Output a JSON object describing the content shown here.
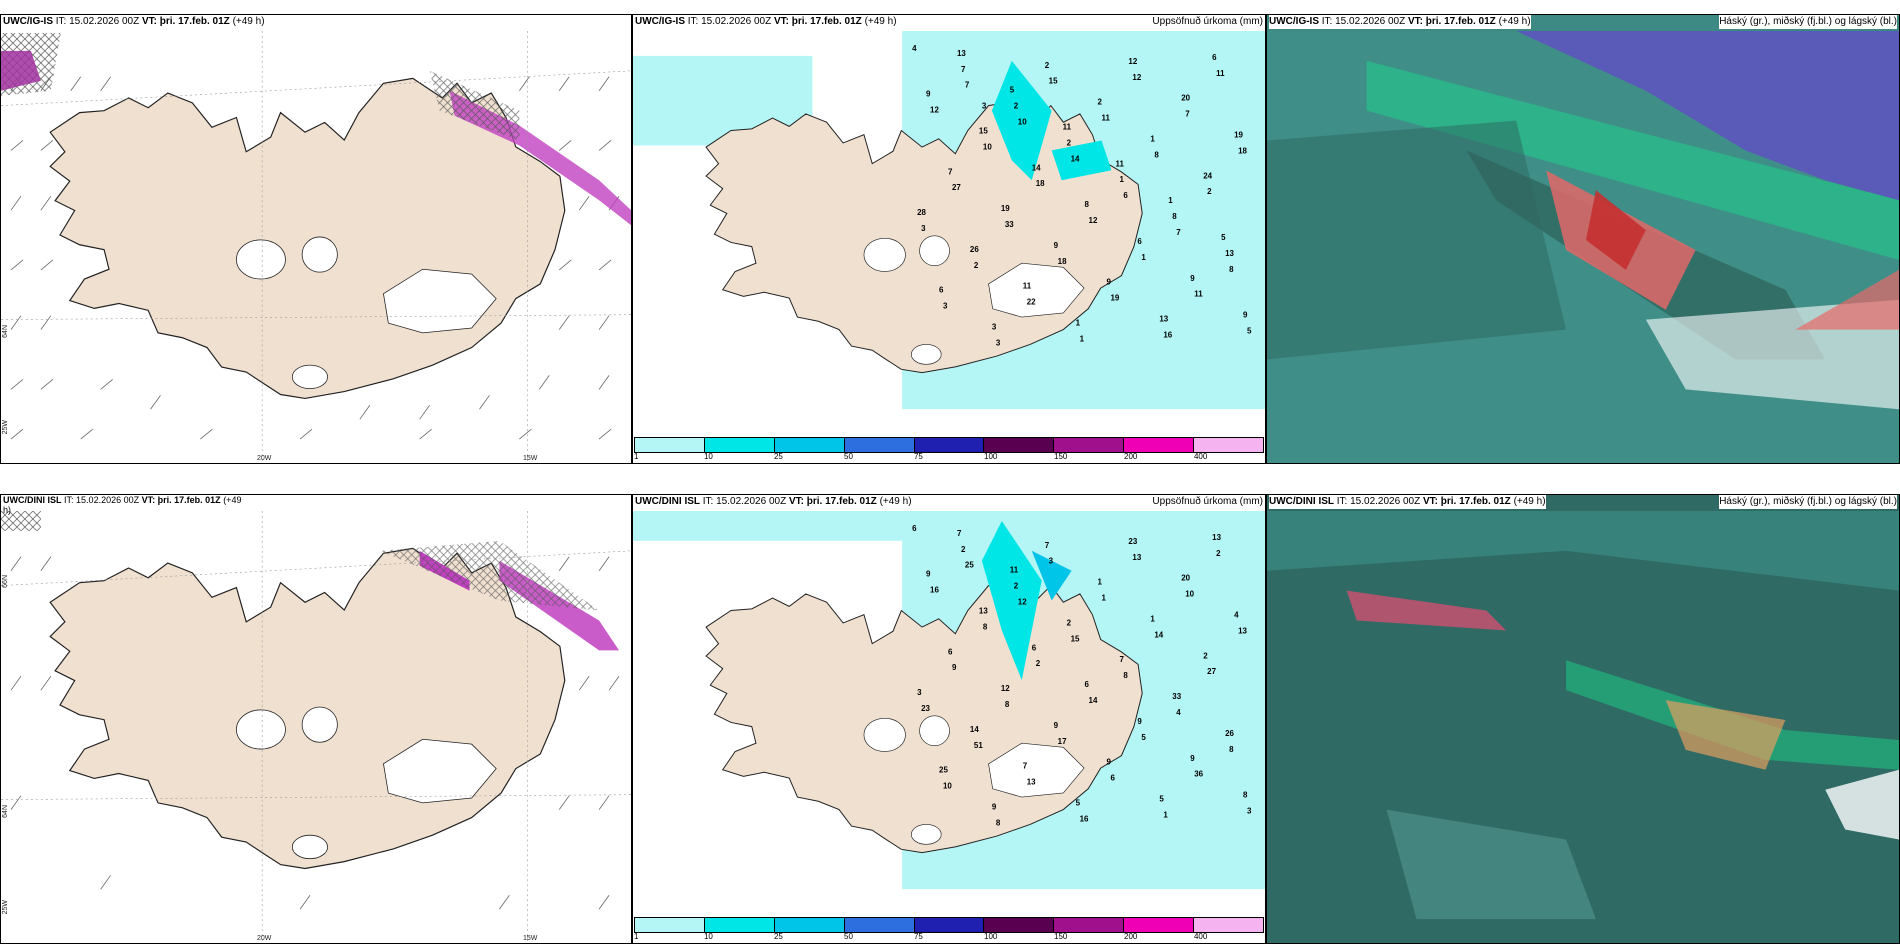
{
  "panels": {
    "p1": {
      "model": "UWC/IG-IS",
      "it_label": "IT:",
      "it": "15.02.2026 00Z",
      "vt_label": "VT:",
      "vt": "þri. 17.feb. 01Z",
      "lead": "(+49 h)",
      "right": ""
    },
    "p2": {
      "model": "UWC/IG-IS",
      "it_label": "IT:",
      "it": "15.02.2026 00Z",
      "vt_label": "VT:",
      "vt": "þri. 17.feb. 01Z",
      "lead": "(+49 h)",
      "right": "Uppsöfnuð úrkoma (mm)"
    },
    "p3": {
      "model": "UWC/IG-IS",
      "it_label": "IT:",
      "it": "15.02.2026 00Z",
      "vt_label": "VT:",
      "vt": "þri. 17.feb. 01Z",
      "lead": "(+49 h)",
      "right": "Háský (gr.), miðský (fj.bl.) og lágský (bl.)"
    },
    "p4": {
      "model": "UWC/DINI ISL",
      "it_label": "IT:",
      "it": "15.02.2026 00Z",
      "vt_label": "VT:",
      "vt": "þri. 17.feb. 01Z",
      "lead": "(+49",
      "lead2": "h)",
      "right": ""
    },
    "p5": {
      "model": "UWC/DINI ISL",
      "it_label": "IT:",
      "it": "15.02.2026 00Z",
      "vt_label": "VT:",
      "vt": "þri. 17.feb. 01Z",
      "lead": "(+49 h)",
      "right": "Uppsöfnuð úrkoma (mm)"
    },
    "p6": {
      "model": "UWC/DINI ISL",
      "it_label": "IT:",
      "it": "15.02.2026 00Z",
      "vt_label": "VT:",
      "vt": "þri. 17.feb. 01Z",
      "lead": "(+49 h)",
      "right": "Háský (gr.), miðský (fj.bl.) og lágský (bl.)"
    }
  },
  "axes": {
    "lon_20": "20W",
    "lon_15": "15W",
    "lon_25": "25W",
    "lat_66": "66N",
    "lat_64": "64N"
  },
  "legend": {
    "labels": [
      "1",
      "10",
      "25",
      "50",
      "75",
      "100",
      "150",
      "200",
      "400"
    ],
    "colors": [
      "#b4f5f5",
      "#00e6e6",
      "#00c4e8",
      "#2e6fe0",
      "#2020b0",
      "#5a0050",
      "#a0108c",
      "#f000b4",
      "#f5b4f0"
    ]
  },
  "precip_labels_ig": [
    "4",
    "7",
    "10",
    "14",
    "6",
    "7",
    "8",
    "3",
    "3",
    "15",
    "11",
    "8",
    "2",
    "3",
    "2",
    "22",
    "1",
    "12",
    "7",
    "18",
    "27",
    "33",
    "18",
    "19",
    "16",
    "11",
    "12",
    "10",
    "18",
    "12",
    "1",
    "11",
    "5",
    "7",
    "2",
    "2",
    "1",
    "8",
    "13",
    "6",
    "3",
    "2",
    "2",
    "1",
    "24",
    "28",
    "26",
    "11",
    "1",
    "12",
    "20",
    "19",
    "7",
    "19",
    "9",
    "9",
    "13",
    "6",
    "9",
    "15",
    "14",
    "8",
    "6",
    "9",
    "9",
    "13",
    "5",
    "11",
    "11",
    "1",
    "5"
  ],
  "precip_labels_dini": [
    "6",
    "25",
    "12",
    "15",
    "8",
    "4",
    "8",
    "10",
    "8",
    "3",
    "1",
    "14",
    "27",
    "23",
    "51",
    "13",
    "16",
    "13",
    "10",
    "13",
    "9",
    "8",
    "17",
    "6",
    "1",
    "2",
    "16",
    "8",
    "2",
    "14",
    "5",
    "36",
    "3",
    "2",
    "2",
    "2",
    "7",
    "33",
    "26",
    "25",
    "9",
    "7",
    "1",
    "1",
    "2",
    "3",
    "14",
    "7",
    "5",
    "23",
    "20",
    "4",
    "6",
    "12",
    "9",
    "9",
    "5",
    "13",
    "9",
    "13",
    "6",
    "6",
    "9",
    "9",
    "8",
    "7",
    "11"
  ]
}
